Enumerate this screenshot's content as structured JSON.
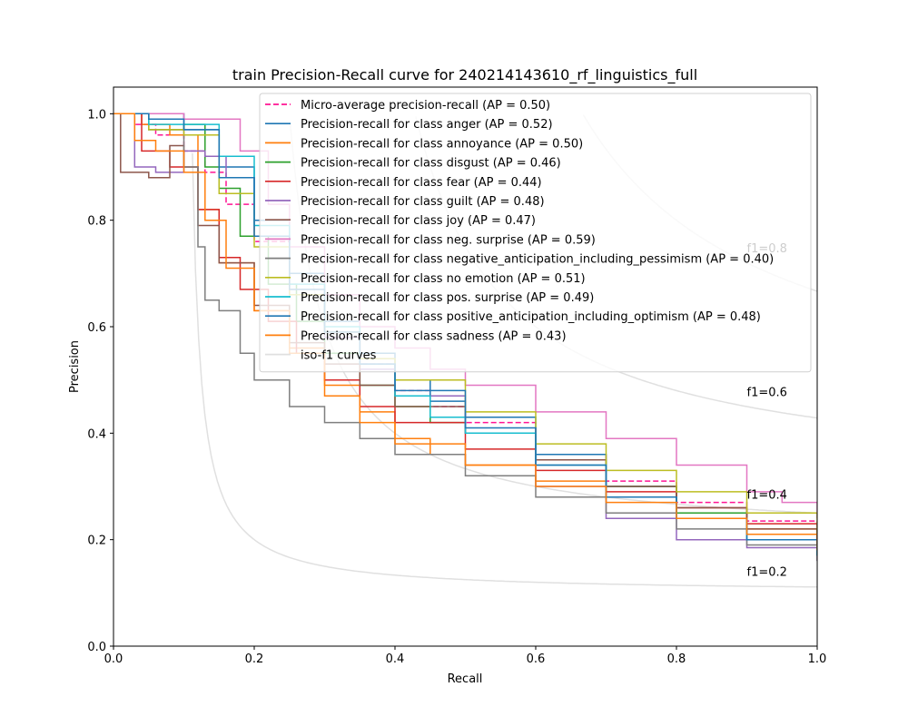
{
  "chart_data": {
    "type": "line",
    "title": "train Precision-Recall curve for 240214143610_rf_linguistics_full",
    "xlabel": "Recall",
    "ylabel": "Precision",
    "xlim": [
      0.0,
      1.0
    ],
    "ylim": [
      0.0,
      1.05
    ],
    "x_ticks": [
      "0.0",
      "0.2",
      "0.4",
      "0.6",
      "0.8",
      "1.0"
    ],
    "y_ticks": [
      "0.0",
      "0.2",
      "0.4",
      "0.6",
      "0.8",
      "1.0"
    ],
    "grid": false,
    "legend_position": "upper right",
    "iso_f1": {
      "label": "iso-f1 curves",
      "color": "#e0e0e0",
      "levels": [
        {
          "f1": 0.2,
          "label": "f1=0.2"
        },
        {
          "f1": 0.4,
          "label": "f1=0.4"
        },
        {
          "f1": 0.6,
          "label": "f1=0.6"
        },
        {
          "f1": 0.8,
          "label": "f1=0.8"
        }
      ]
    },
    "series": [
      {
        "name": "Micro-average precision-recall (AP = 0.50)",
        "color": "#ff1493",
        "dashed": true,
        "points": [
          [
            0,
            1.0
          ],
          [
            0.03,
            0.98
          ],
          [
            0.06,
            0.96
          ],
          [
            0.1,
            0.93
          ],
          [
            0.13,
            0.89
          ],
          [
            0.16,
            0.83
          ],
          [
            0.2,
            0.76
          ],
          [
            0.25,
            0.66
          ],
          [
            0.3,
            0.58
          ],
          [
            0.35,
            0.53
          ],
          [
            0.4,
            0.48
          ],
          [
            0.45,
            0.45
          ],
          [
            0.5,
            0.42
          ],
          [
            0.6,
            0.36
          ],
          [
            0.7,
            0.31
          ],
          [
            0.8,
            0.27
          ],
          [
            0.9,
            0.235
          ],
          [
            1.0,
            0.19
          ]
        ]
      },
      {
        "name": "Precision-recall for class anger (AP = 0.52)",
        "color": "#1f77b4",
        "points": [
          [
            0,
            1.0
          ],
          [
            0.05,
            1.0
          ],
          [
            0.1,
            0.97
          ],
          [
            0.15,
            0.9
          ],
          [
            0.2,
            0.8
          ],
          [
            0.25,
            0.7
          ],
          [
            0.3,
            0.61
          ],
          [
            0.35,
            0.55
          ],
          [
            0.4,
            0.5
          ],
          [
            0.45,
            0.46
          ],
          [
            0.5,
            0.43
          ],
          [
            0.6,
            0.36
          ],
          [
            0.7,
            0.3
          ],
          [
            0.8,
            0.25
          ],
          [
            0.9,
            0.21
          ],
          [
            1.0,
            0.17
          ]
        ]
      },
      {
        "name": "Precision-recall for class annoyance (AP = 0.50)",
        "color": "#ff7f0e",
        "points": [
          [
            0,
            1.0
          ],
          [
            0.04,
            0.98
          ],
          [
            0.08,
            0.96
          ],
          [
            0.12,
            0.82
          ],
          [
            0.15,
            0.72
          ],
          [
            0.2,
            0.63
          ],
          [
            0.25,
            0.56
          ],
          [
            0.3,
            0.49
          ],
          [
            0.35,
            0.44
          ],
          [
            0.4,
            0.39
          ],
          [
            0.45,
            0.36
          ],
          [
            0.5,
            0.34
          ],
          [
            0.6,
            0.31
          ],
          [
            0.7,
            0.28
          ],
          [
            0.8,
            0.25
          ],
          [
            0.9,
            0.22
          ],
          [
            1.0,
            0.18
          ]
        ]
      },
      {
        "name": "Precision-recall for class disgust (AP = 0.46)",
        "color": "#2ca02c",
        "points": [
          [
            0,
            1.0
          ],
          [
            0.05,
            0.97
          ],
          [
            0.1,
            0.98
          ],
          [
            0.13,
            0.9
          ],
          [
            0.15,
            0.86
          ],
          [
            0.18,
            0.77
          ],
          [
            0.22,
            0.68
          ],
          [
            0.26,
            0.61
          ],
          [
            0.3,
            0.55
          ],
          [
            0.35,
            0.49
          ],
          [
            0.4,
            0.45
          ],
          [
            0.45,
            0.42
          ],
          [
            0.5,
            0.4
          ],
          [
            0.6,
            0.35
          ],
          [
            0.7,
            0.3
          ],
          [
            0.8,
            0.25
          ],
          [
            0.9,
            0.21
          ],
          [
            1.0,
            0.17
          ]
        ]
      },
      {
        "name": "Precision-recall for class fear (AP = 0.44)",
        "color": "#d62728",
        "points": [
          [
            0,
            1.0
          ],
          [
            0.04,
            0.93
          ],
          [
            0.08,
            0.9
          ],
          [
            0.1,
            0.9
          ],
          [
            0.12,
            0.82
          ],
          [
            0.15,
            0.73
          ],
          [
            0.18,
            0.67
          ],
          [
            0.22,
            0.61
          ],
          [
            0.26,
            0.55
          ],
          [
            0.3,
            0.5
          ],
          [
            0.35,
            0.45
          ],
          [
            0.4,
            0.42
          ],
          [
            0.5,
            0.37
          ],
          [
            0.6,
            0.33
          ],
          [
            0.7,
            0.29
          ],
          [
            0.8,
            0.26
          ],
          [
            0.9,
            0.23
          ],
          [
            1.0,
            0.19
          ]
        ]
      },
      {
        "name": "Precision-recall for class guilt (AP = 0.48)",
        "color": "#9467bd",
        "points": [
          [
            0,
            1.0
          ],
          [
            0.03,
            0.9
          ],
          [
            0.06,
            0.89
          ],
          [
            0.1,
            0.93
          ],
          [
            0.13,
            0.92
          ],
          [
            0.16,
            0.88
          ],
          [
            0.2,
            0.77
          ],
          [
            0.25,
            0.67
          ],
          [
            0.3,
            0.58
          ],
          [
            0.35,
            0.52
          ],
          [
            0.4,
            0.47
          ],
          [
            0.5,
            0.4
          ],
          [
            0.6,
            0.3
          ],
          [
            0.7,
            0.24
          ],
          [
            0.8,
            0.2
          ],
          [
            0.9,
            0.185
          ],
          [
            1.0,
            0.16
          ]
        ]
      },
      {
        "name": "Precision-recall for class joy (AP = 0.47)",
        "color": "#8c564b",
        "points": [
          [
            0,
            1.0
          ],
          [
            0.01,
            0.89
          ],
          [
            0.03,
            0.89
          ],
          [
            0.05,
            0.88
          ],
          [
            0.08,
            0.94
          ],
          [
            0.1,
            0.9
          ],
          [
            0.12,
            0.79
          ],
          [
            0.15,
            0.72
          ],
          [
            0.2,
            0.64
          ],
          [
            0.25,
            0.57
          ],
          [
            0.3,
            0.53
          ],
          [
            0.35,
            0.49
          ],
          [
            0.4,
            0.45
          ],
          [
            0.5,
            0.4
          ],
          [
            0.6,
            0.35
          ],
          [
            0.7,
            0.3
          ],
          [
            0.8,
            0.26
          ],
          [
            0.9,
            0.22
          ],
          [
            1.0,
            0.2
          ]
        ]
      },
      {
        "name": "Precision-recall for class neg. surprise (AP = 0.59)",
        "color": "#e377c2",
        "points": [
          [
            0,
            1.0
          ],
          [
            0.1,
            0.99
          ],
          [
            0.15,
            0.99
          ],
          [
            0.18,
            0.93
          ],
          [
            0.22,
            0.83
          ],
          [
            0.25,
            0.75
          ],
          [
            0.3,
            0.66
          ],
          [
            0.35,
            0.6
          ],
          [
            0.4,
            0.56
          ],
          [
            0.45,
            0.52
          ],
          [
            0.5,
            0.49
          ],
          [
            0.6,
            0.44
          ],
          [
            0.7,
            0.39
          ],
          [
            0.8,
            0.34
          ],
          [
            0.9,
            0.29
          ],
          [
            0.95,
            0.27
          ],
          [
            1.0,
            0.24
          ]
        ]
      },
      {
        "name": "Precision-recall for class negative_anticipation_including_pessimism (AP = 0.40)",
        "color": "#7f7f7f",
        "points": [
          [
            0,
            1.0
          ],
          [
            0.05,
            0.97
          ],
          [
            0.1,
            0.9
          ],
          [
            0.12,
            0.75
          ],
          [
            0.13,
            0.65
          ],
          [
            0.15,
            0.63
          ],
          [
            0.18,
            0.55
          ],
          [
            0.2,
            0.5
          ],
          [
            0.25,
            0.45
          ],
          [
            0.3,
            0.42
          ],
          [
            0.35,
            0.39
          ],
          [
            0.4,
            0.36
          ],
          [
            0.5,
            0.32
          ],
          [
            0.6,
            0.28
          ],
          [
            0.7,
            0.25
          ],
          [
            0.8,
            0.22
          ],
          [
            0.9,
            0.19
          ],
          [
            1.0,
            0.16
          ]
        ]
      },
      {
        "name": "Precision-recall for class no emotion (AP = 0.51)",
        "color": "#bcbd22",
        "points": [
          [
            0,
            1.0
          ],
          [
            0.05,
            0.97
          ],
          [
            0.1,
            0.96
          ],
          [
            0.15,
            0.85
          ],
          [
            0.2,
            0.75
          ],
          [
            0.25,
            0.66
          ],
          [
            0.3,
            0.59
          ],
          [
            0.35,
            0.54
          ],
          [
            0.4,
            0.5
          ],
          [
            0.5,
            0.44
          ],
          [
            0.6,
            0.38
          ],
          [
            0.7,
            0.33
          ],
          [
            0.8,
            0.29
          ],
          [
            0.9,
            0.25
          ],
          [
            1.0,
            0.21
          ]
        ]
      },
      {
        "name": "Precision-recall for class pos. surprise (AP = 0.49)",
        "color": "#17becf",
        "points": [
          [
            0,
            1.0
          ],
          [
            0.05,
            0.98
          ],
          [
            0.1,
            0.98
          ],
          [
            0.15,
            0.92
          ],
          [
            0.2,
            0.79
          ],
          [
            0.25,
            0.68
          ],
          [
            0.3,
            0.6
          ],
          [
            0.35,
            0.53
          ],
          [
            0.4,
            0.47
          ],
          [
            0.45,
            0.43
          ],
          [
            0.5,
            0.4
          ],
          [
            0.6,
            0.34
          ],
          [
            0.7,
            0.28
          ],
          [
            0.8,
            0.24
          ],
          [
            0.9,
            0.2
          ],
          [
            1.0,
            0.17
          ]
        ]
      },
      {
        "name": "Precision-recall for class positive_anticipation_including_optimism (AP = 0.48)",
        "color": "#1f77b4",
        "points": [
          [
            0,
            1.0
          ],
          [
            0.05,
            0.99
          ],
          [
            0.1,
            0.97
          ],
          [
            0.15,
            0.88
          ],
          [
            0.2,
            0.77
          ],
          [
            0.25,
            0.67
          ],
          [
            0.3,
            0.59
          ],
          [
            0.35,
            0.53
          ],
          [
            0.4,
            0.48
          ],
          [
            0.5,
            0.41
          ],
          [
            0.6,
            0.34
          ],
          [
            0.7,
            0.28
          ],
          [
            0.8,
            0.24
          ],
          [
            0.9,
            0.2
          ],
          [
            1.0,
            0.17
          ]
        ]
      },
      {
        "name": "Precision-recall for class sadness (AP = 0.43)",
        "color": "#ff7f0e",
        "points": [
          [
            0,
            1.0
          ],
          [
            0.03,
            0.95
          ],
          [
            0.06,
            0.93
          ],
          [
            0.1,
            0.89
          ],
          [
            0.13,
            0.8
          ],
          [
            0.16,
            0.71
          ],
          [
            0.2,
            0.63
          ],
          [
            0.25,
            0.55
          ],
          [
            0.3,
            0.47
          ],
          [
            0.35,
            0.42
          ],
          [
            0.4,
            0.38
          ],
          [
            0.5,
            0.34
          ],
          [
            0.6,
            0.3
          ],
          [
            0.7,
            0.27
          ],
          [
            0.8,
            0.24
          ],
          [
            0.9,
            0.21
          ],
          [
            1.0,
            0.18
          ]
        ]
      }
    ]
  }
}
